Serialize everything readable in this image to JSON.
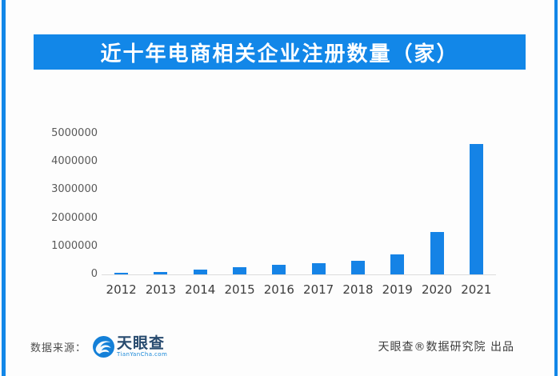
{
  "page": {
    "accent_blue": "#1287e8",
    "background": "#fdfdfd"
  },
  "banner": {
    "title": "近十年电商相关企业注册数量（家）",
    "bg": "#1287e8",
    "text_color": "#ffffff"
  },
  "chart_data": {
    "type": "bar",
    "title": "近十年电商相关企业注册数量（家）",
    "categories": [
      "2012",
      "2013",
      "2014",
      "2015",
      "2016",
      "2017",
      "2018",
      "2019",
      "2020",
      "2021"
    ],
    "values": [
      60000,
      90000,
      170000,
      260000,
      340000,
      400000,
      470000,
      700000,
      1500000,
      4640000
    ],
    "xlabel": "",
    "ylabel": "",
    "ylim": [
      0,
      5000000
    ],
    "yticks": [
      0,
      1000000,
      2000000,
      3000000,
      4000000,
      5000000
    ],
    "ytick_labels": [
      "0",
      "1000000",
      "2000000",
      "3000000",
      "4000000",
      "5000000"
    ],
    "grid": false,
    "legend": "none",
    "bar_color": "#1583e6",
    "axis_line_color": "#dcdcdc",
    "ytick_color": "#595959",
    "xtick_color": "#3d3d3d"
  },
  "footer": {
    "source_label": "数据来源：",
    "logo_name": "天眼查",
    "logo_subtext": "TianYanCha.com",
    "credit": "天眼查®数据研究院 出品"
  }
}
